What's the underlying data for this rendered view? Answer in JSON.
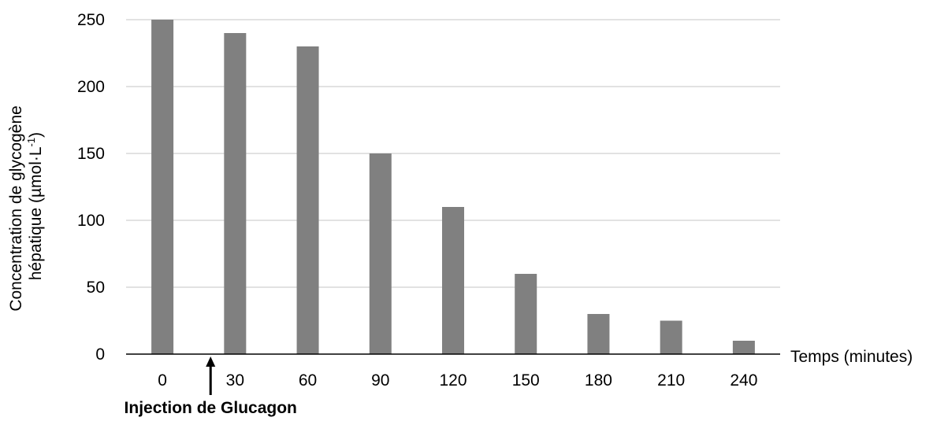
{
  "chart_data": {
    "type": "bar",
    "categories": [
      "0",
      "30",
      "60",
      "90",
      "120",
      "150",
      "180",
      "210",
      "240"
    ],
    "values": [
      250,
      240,
      230,
      150,
      110,
      60,
      30,
      25,
      10
    ],
    "ylim": [
      0,
      250
    ],
    "yticks": [
      0,
      50,
      100,
      150,
      200,
      250
    ],
    "ylabel_line1": "Concentration de glycogène",
    "ylabel_line2_prefix": "hépatique (µmol·L",
    "ylabel_line2_sup": "-1",
    "ylabel_line2_suffix": ")",
    "xlabel": "Temps (minutes)",
    "annotation": {
      "text": "Injection de Glucagon",
      "between_categories": [
        "0",
        "30"
      ]
    },
    "grid": true,
    "legend": "none",
    "bar_color": "#808080",
    "grid_color": "#d9d9d9",
    "axis_color": "#000000"
  }
}
